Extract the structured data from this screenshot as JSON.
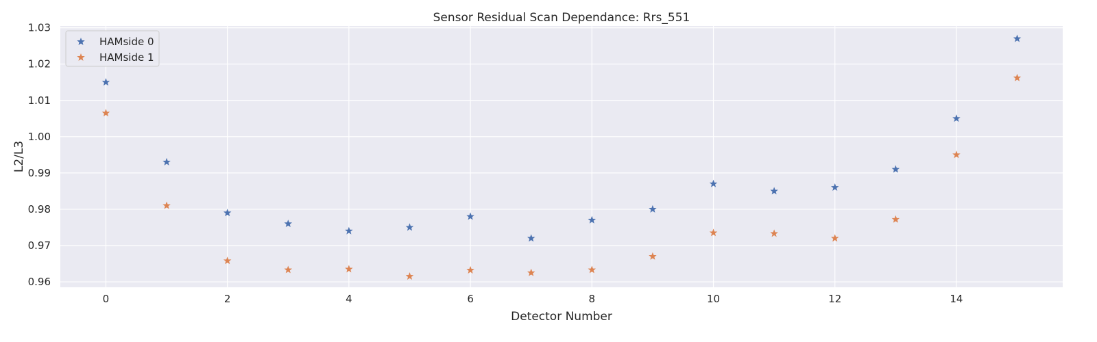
{
  "chart_data": {
    "type": "scatter",
    "title": "Sensor Residual Scan Dependance: Rrs_551",
    "xlabel": "Detector Number",
    "ylabel": "L2/L3",
    "xlim": [
      -0.75,
      15.75
    ],
    "ylim": [
      0.9585,
      1.0305
    ],
    "x_ticks": [
      0,
      2,
      4,
      6,
      8,
      10,
      12,
      14
    ],
    "y_ticks": [
      0.96,
      0.97,
      0.98,
      0.99,
      1.0,
      1.01,
      1.02,
      1.03
    ],
    "y_tick_labels": [
      "0.96",
      "0.97",
      "0.98",
      "0.99",
      "1.00",
      "1.01",
      "1.02",
      "1.03"
    ],
    "grid": true,
    "legend_position": "top-left",
    "marker": "star",
    "x": [
      0,
      1,
      2,
      3,
      4,
      5,
      6,
      7,
      8,
      9,
      10,
      11,
      12,
      13,
      14,
      15
    ],
    "series": [
      {
        "name": "HAMside 0",
        "color": "#4c72b0",
        "values": [
          1.015,
          0.993,
          0.979,
          0.976,
          0.974,
          0.975,
          0.978,
          0.972,
          0.977,
          0.98,
          0.987,
          0.985,
          0.986,
          0.991,
          1.005,
          1.027
        ]
      },
      {
        "name": "HAMside 1",
        "color": "#dd8452",
        "values": [
          1.0065,
          0.981,
          0.9658,
          0.9633,
          0.9635,
          0.9615,
          0.9632,
          0.9625,
          0.9633,
          0.967,
          0.9735,
          0.9733,
          0.972,
          0.9772,
          0.995,
          1.0162
        ]
      }
    ],
    "colors": {
      "background": "#eaeaf2",
      "grid": "#ffffff"
    }
  }
}
